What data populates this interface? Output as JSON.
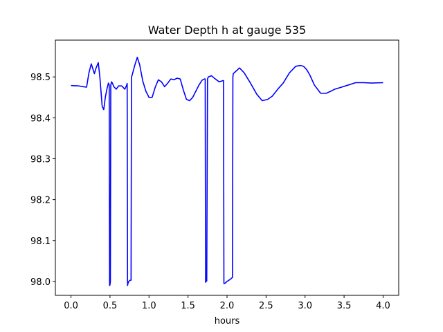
{
  "chart_data": {
    "type": "line",
    "title": "Water Depth h at gauge 535",
    "xlabel": "hours",
    "ylabel": "",
    "xlim": [
      -0.2,
      4.2
    ],
    "ylim": [
      97.966,
      98.59
    ],
    "xticks": [
      0.0,
      0.5,
      1.0,
      1.5,
      2.0,
      2.5,
      3.0,
      3.5,
      4.0
    ],
    "xtick_labels": [
      "0.0",
      "0.5",
      "1.0",
      "1.5",
      "2.0",
      "2.5",
      "3.0",
      "3.5",
      "4.0"
    ],
    "yticks": [
      98.0,
      98.1,
      98.2,
      98.3,
      98.4,
      98.5
    ],
    "ytick_labels": [
      "98.0",
      "98.1",
      "98.2",
      "98.3",
      "98.4",
      "98.5"
    ],
    "grid": false,
    "series": [
      {
        "name": "",
        "color": "#0000ff",
        "x": [
          0.0,
          0.1,
          0.16,
          0.2,
          0.23,
          0.26,
          0.3,
          0.32,
          0.35,
          0.37,
          0.4,
          0.42,
          0.44,
          0.46,
          0.48,
          0.49,
          0.495,
          0.5,
          0.505,
          0.51,
          0.52,
          0.53,
          0.55,
          0.58,
          0.61,
          0.65,
          0.69,
          0.71,
          0.72,
          0.725,
          0.73,
          0.74,
          0.76,
          0.77,
          0.775,
          0.78,
          0.82,
          0.85,
          0.88,
          0.92,
          0.96,
          1.0,
          1.04,
          1.08,
          1.12,
          1.16,
          1.2,
          1.24,
          1.28,
          1.32,
          1.36,
          1.4,
          1.44,
          1.48,
          1.52,
          1.56,
          1.6,
          1.64,
          1.68,
          1.71,
          1.72,
          1.725,
          1.73,
          1.74,
          1.75,
          1.76,
          1.8,
          1.85,
          1.9,
          1.95,
          1.955,
          1.96,
          1.97,
          2.0,
          2.04,
          2.07,
          2.075,
          2.08,
          2.12,
          2.16,
          2.22,
          2.3,
          2.38,
          2.45,
          2.52,
          2.58,
          2.65,
          2.72,
          2.8,
          2.88,
          2.94,
          2.98,
          3.02,
          3.06,
          3.12,
          3.2,
          3.27,
          3.33,
          3.38,
          3.45,
          3.55,
          3.65,
          3.75,
          3.85,
          4.0
        ],
        "values": [
          98.479,
          98.478,
          98.476,
          98.475,
          98.51,
          98.532,
          98.508,
          98.521,
          98.535,
          98.5,
          98.428,
          98.42,
          98.45,
          98.47,
          98.485,
          98.48,
          97.99,
          97.992,
          98.0,
          98.48,
          98.488,
          98.485,
          98.476,
          98.47,
          98.478,
          98.478,
          98.47,
          98.478,
          98.484,
          97.99,
          97.995,
          98.0,
          98.003,
          98.003,
          98.5,
          98.502,
          98.53,
          98.548,
          98.53,
          98.49,
          98.465,
          98.45,
          98.45,
          98.475,
          98.493,
          98.488,
          98.476,
          98.485,
          98.495,
          98.493,
          98.497,
          98.495,
          98.468,
          98.445,
          98.442,
          98.45,
          98.465,
          98.48,
          98.492,
          98.495,
          98.495,
          97.998,
          98.0,
          98.001,
          98.495,
          98.5,
          98.503,
          98.495,
          98.488,
          98.491,
          98.491,
          97.995,
          97.995,
          98.0,
          98.005,
          98.01,
          98.5,
          98.508,
          98.515,
          98.522,
          98.51,
          98.485,
          98.458,
          98.442,
          98.445,
          98.453,
          98.47,
          98.485,
          98.51,
          98.526,
          98.528,
          98.526,
          98.518,
          98.505,
          98.48,
          98.46,
          98.46,
          98.465,
          98.47,
          98.474,
          98.48,
          98.486,
          98.486,
          98.485,
          98.486
        ]
      }
    ]
  }
}
